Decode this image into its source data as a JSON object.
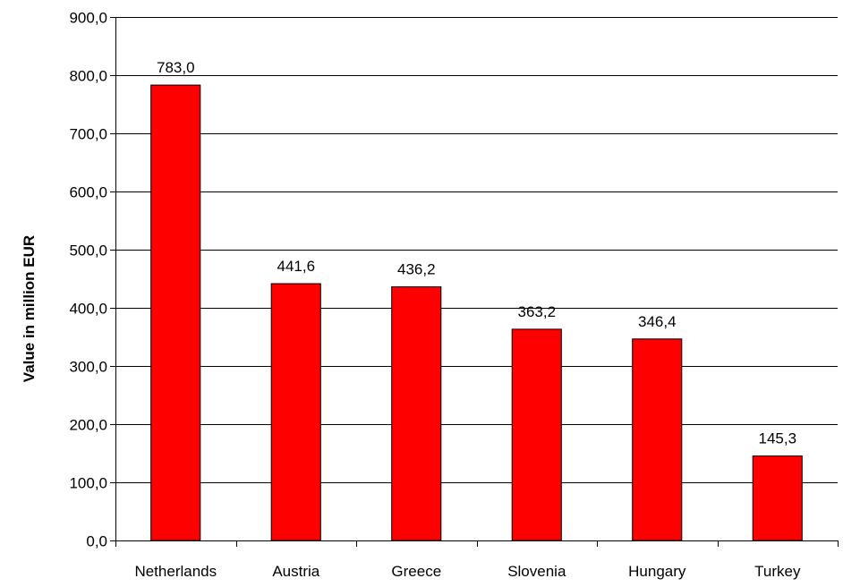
{
  "chart_data": {
    "type": "bar",
    "categories": [
      "Netherlands",
      "Austria",
      "Greece",
      "Slovenia",
      "Hungary",
      "Turkey"
    ],
    "values": [
      783.0,
      441.6,
      436.2,
      363.2,
      346.4,
      145.3
    ],
    "data_labels": [
      "783,0",
      "441,6",
      "436,2",
      "363,2",
      "346,4",
      "145,3"
    ],
    "xlabel": "",
    "ylabel": "Value in million EUR",
    "ylim": [
      0,
      900
    ],
    "yticks": [
      0,
      100,
      200,
      300,
      400,
      500,
      600,
      700,
      800,
      900
    ],
    "ytick_labels": [
      "0,0",
      "100,0",
      "200,0",
      "300,0",
      "400,0",
      "500,0",
      "600,0",
      "700,0",
      "800,0",
      "900,0"
    ],
    "grid": true,
    "legend": "none",
    "colors": {
      "bar_fill": "#ff0000",
      "bar_stroke": "#000000",
      "grid": "#000000",
      "axis": "#000000"
    }
  }
}
